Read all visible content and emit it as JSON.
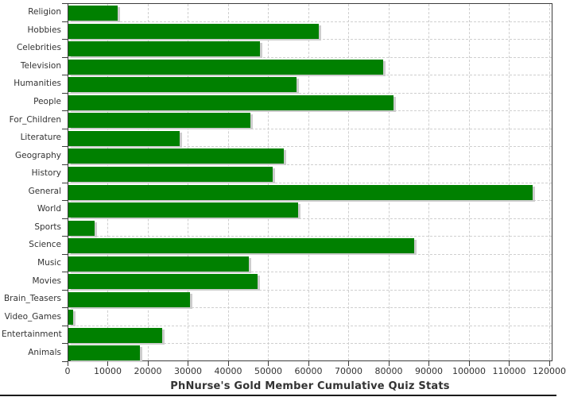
{
  "chart_data": {
    "type": "bar",
    "orientation": "horizontal",
    "title": "PhNurse's Gold Member Cumulative Quiz Stats",
    "xlabel": "",
    "ylabel": "",
    "xlim": [
      0,
      120800
    ],
    "grid": true,
    "legend": "none",
    "bar_color": "#008000",
    "categories": [
      "Religion",
      "Hobbies",
      "Celebrities",
      "Television",
      "Humanities",
      "People",
      "For_Children",
      "Literature",
      "Geography",
      "History",
      "General",
      "World",
      "Sports",
      "Science",
      "Music",
      "Movies",
      "Brain_Teasers",
      "Video_Games",
      "Entertainment",
      "Animals"
    ],
    "values": [
      12200,
      62300,
      47800,
      78500,
      56900,
      81000,
      45400,
      27700,
      53600,
      50800,
      115600,
      57200,
      6600,
      86100,
      45000,
      47200,
      30200,
      1100,
      23300,
      17900
    ],
    "x_ticks": [
      0,
      10000,
      20000,
      30000,
      40000,
      50000,
      60000,
      70000,
      80000,
      90000,
      100000,
      110000,
      120000
    ],
    "x_tick_labels": [
      "0",
      "10000",
      "20000",
      "30000",
      "40000",
      "50000",
      "60000",
      "70000",
      "80000",
      "90000",
      "100000",
      "110000",
      "120000"
    ]
  },
  "colors": {
    "bar": "#008000",
    "bar_shadow": "#cdcdcd",
    "grid": "#cfcfcf",
    "axis": "#3c3c3c",
    "text": "#333333"
  }
}
